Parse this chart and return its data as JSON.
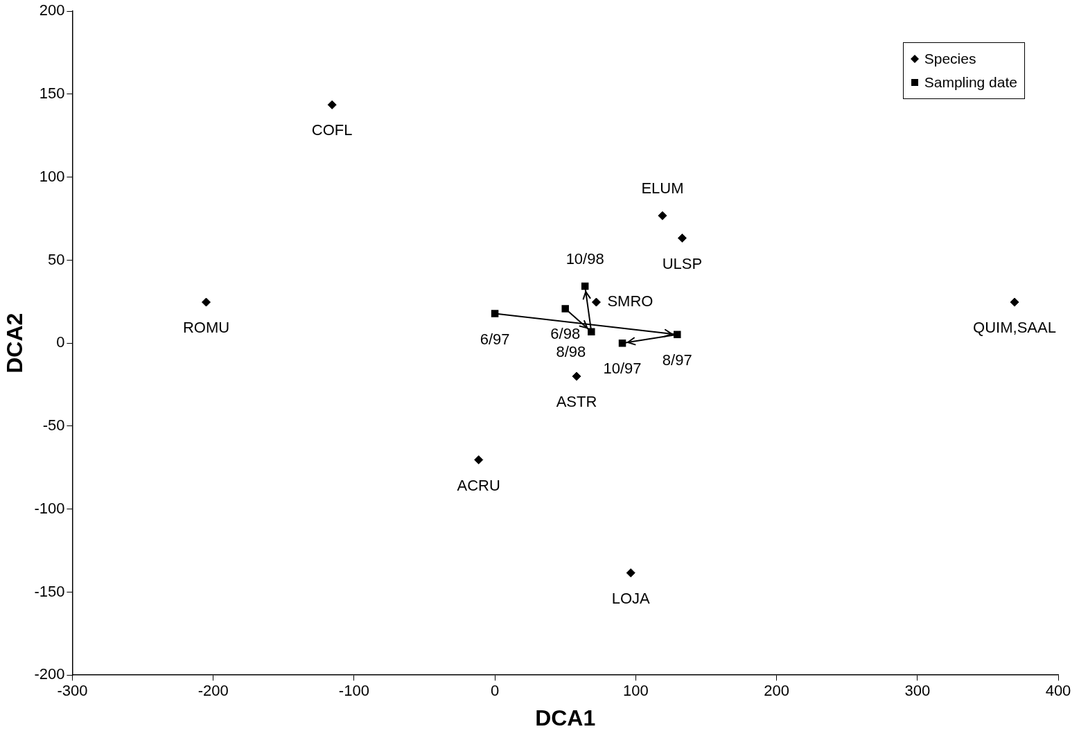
{
  "chart_data": {
    "type": "scatter",
    "xlabel": "DCA1",
    "ylabel": "DCA2",
    "xlim": [
      -300,
      400
    ],
    "xticks": [
      -300,
      -200,
      -100,
      0,
      100,
      200,
      300,
      400
    ],
    "ylim": [
      -200,
      200
    ],
    "yticks": [
      -200,
      -150,
      -100,
      -50,
      0,
      50,
      100,
      150,
      200
    ],
    "grid": false,
    "legend": "top right",
    "series": [
      {
        "name": "Species",
        "marker": "diamond",
        "color": "#000000",
        "x": [
          -115.6,
          119,
          133,
          369,
          -205,
          72,
          58,
          -11.5,
          96.5
        ],
        "values": [
          143.6,
          76.8,
          63.3,
          24.7,
          24.7,
          24.7,
          -20,
          -70.3,
          -138.4
        ],
        "value_labels": [
          "COFL",
          "ELUM",
          "ULSP",
          "QUIM,SAAL",
          "ROMU",
          "SMRO",
          "ASTR",
          "ACRU",
          "LOJA"
        ]
      },
      {
        "name": "Sampling date",
        "type": "line",
        "marker": "square",
        "color": "#000000",
        "x": [
          0,
          129.5,
          90.5
        ],
        "values": [
          17.8,
          5.2,
          0
        ],
        "value_labels": [
          "6/97",
          "8/97",
          "10/97"
        ]
      },
      {
        "type": "line",
        "marker": "square",
        "color": "#000000",
        "x": [
          50,
          68.5,
          64
        ],
        "values": [
          20.8,
          6.9,
          34.3
        ],
        "value_labels": [
          "6/98",
          "8/98",
          "10/98"
        ]
      }
    ]
  }
}
